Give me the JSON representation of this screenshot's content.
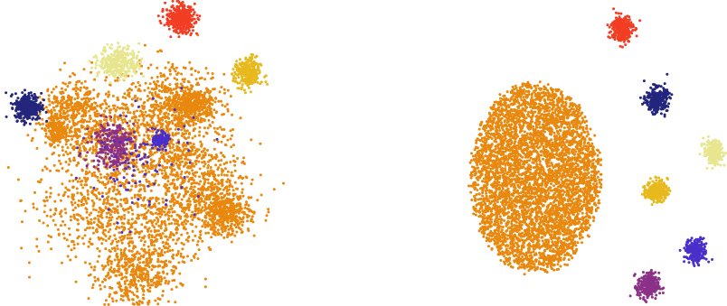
{
  "palette": {
    "orange": "#E8880E",
    "red": "#F23E24",
    "pale_yellow": "#E7E68F",
    "gold": "#E7B91D",
    "navy": "#23267C",
    "blue_violet": "#4A2FC9",
    "purple": "#8B3187"
  },
  "chart_data": [
    {
      "type": "scatter",
      "grid": false,
      "axes": false,
      "legend": "none",
      "clusters": [
        {
          "color": "orange",
          "center": [
            -1.0,
            -0.2
          ],
          "spread": [
            2.6,
            3.0
          ],
          "points": 3500,
          "shape": "blobby"
        },
        {
          "color": "orange",
          "center": [
            1.4,
            2.7
          ],
          "spread": [
            0.9,
            0.6
          ],
          "points": 350
        },
        {
          "color": "orange",
          "center": [
            2.9,
            -2.2
          ],
          "spread": [
            1.0,
            0.9
          ],
          "points": 400
        },
        {
          "color": "orange",
          "center": [
            -4.9,
            1.5
          ],
          "spread": [
            0.45,
            0.45
          ],
          "points": 150
        },
        {
          "color": "purple",
          "center": [
            -2.3,
            0.9
          ],
          "spread": [
            0.9,
            1.0
          ],
          "points": 280
        },
        {
          "color": "blue_violet",
          "center": [
            -0.1,
            1.1
          ],
          "spread": [
            0.3,
            0.3
          ],
          "points": 140
        },
        {
          "color": "blue_violet",
          "center": [
            -1.0,
            0.0
          ],
          "spread": [
            2.3,
            2.3
          ],
          "points": 90
        },
        {
          "color": "red",
          "center": [
            0.8,
            6.6
          ],
          "spread": [
            0.6,
            0.55
          ],
          "points": 420
        },
        {
          "color": "pale_yellow",
          "center": [
            -2.0,
            4.6
          ],
          "spread": [
            0.85,
            0.65
          ],
          "points": 320
        },
        {
          "color": "gold",
          "center": [
            3.9,
            4.1
          ],
          "spread": [
            0.55,
            0.65
          ],
          "points": 260
        },
        {
          "color": "navy",
          "center": [
            -6.2,
            2.6
          ],
          "spread": [
            0.55,
            0.55
          ],
          "points": 340
        }
      ]
    },
    {
      "type": "scatter",
      "grid": false,
      "axes": false,
      "legend": "none",
      "clusters": [
        {
          "color": "orange",
          "center": [
            0.0,
            0.0
          ],
          "spread": [
            3.0,
            4.4
          ],
          "points": 4600,
          "shape": "ellipse"
        },
        {
          "color": "red",
          "center": [
            4.0,
            6.9
          ],
          "spread": [
            0.45,
            0.55
          ],
          "points": 300
        },
        {
          "color": "navy",
          "center": [
            5.6,
            3.6
          ],
          "spread": [
            0.45,
            0.5
          ],
          "points": 300
        },
        {
          "color": "pale_yellow",
          "center": [
            8.2,
            1.2
          ],
          "spread": [
            0.4,
            0.5
          ],
          "points": 220
        },
        {
          "color": "gold",
          "center": [
            5.6,
            -0.6
          ],
          "spread": [
            0.45,
            0.45
          ],
          "points": 260
        },
        {
          "color": "blue_violet",
          "center": [
            7.4,
            -3.4
          ],
          "spread": [
            0.45,
            0.5
          ],
          "points": 230
        },
        {
          "color": "purple",
          "center": [
            5.2,
            -5.0
          ],
          "spread": [
            0.45,
            0.55
          ],
          "points": 260
        }
      ]
    }
  ]
}
